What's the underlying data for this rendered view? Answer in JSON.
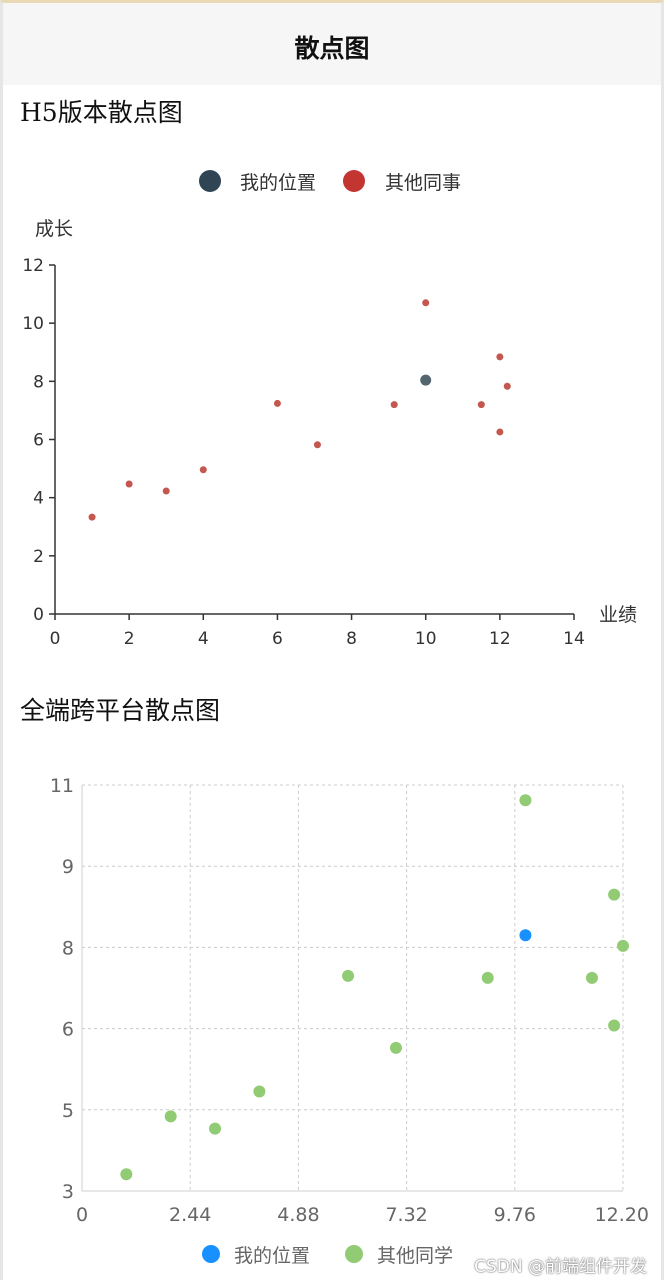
{
  "header": {
    "title": "散点图"
  },
  "sections": {
    "h5_title": "H5版本散点图",
    "cross_title": "全端跨平台散点图"
  },
  "colors": {
    "h5_me": "#2f4554",
    "h5_others": "#c23531",
    "h5_me_point": "#546570",
    "h5_others_point": "#c4574f",
    "cross_me": "#1890ff",
    "cross_others": "#91cb74"
  },
  "watermark": "CSDN @前端组件开发",
  "chart_data": [
    {
      "type": "scatter",
      "title": "H5版本散点图",
      "xlabel": "业绩",
      "ylabel": "成长",
      "xlim": [
        0,
        14
      ],
      "ylim": [
        0,
        12
      ],
      "xticks": [
        "0",
        "2",
        "4",
        "6",
        "8",
        "10",
        "12",
        "14"
      ],
      "yticks": [
        "0",
        "2",
        "4",
        "6",
        "8",
        "10",
        "12"
      ],
      "grid": false,
      "legend_position": "top-center",
      "series": [
        {
          "name": "我的位置",
          "points": [
            [
              10.0,
              8.04
            ]
          ]
        },
        {
          "name": "其他同事",
          "points": [
            [
              1.0,
              3.33
            ],
            [
              2.0,
              4.47
            ],
            [
              3.0,
              4.23
            ],
            [
              4.0,
              4.96
            ],
            [
              6.0,
              7.24
            ],
            [
              7.08,
              5.82
            ],
            [
              9.15,
              7.2
            ],
            [
              10.0,
              10.7
            ],
            [
              11.5,
              7.2
            ],
            [
              12.0,
              8.84
            ],
            [
              12.0,
              6.26
            ],
            [
              12.2,
              7.83
            ]
          ]
        }
      ]
    },
    {
      "type": "scatter",
      "title": "全端跨平台散点图",
      "xlim": [
        0,
        12.2
      ],
      "ylim": [
        3,
        11
      ],
      "xticks": [
        "0",
        "2.44",
        "4.88",
        "7.32",
        "9.76",
        "12.20"
      ],
      "yticks": [
        "3",
        "5",
        "6",
        "8",
        "9",
        "11"
      ],
      "grid": true,
      "legend_position": "bottom-center",
      "series": [
        {
          "name": "我的位置",
          "points": [
            [
              10.0,
              8.04
            ]
          ]
        },
        {
          "name": "其他同学",
          "points": [
            [
              1.0,
              3.33
            ],
            [
              2.0,
              4.47
            ],
            [
              3.0,
              4.23
            ],
            [
              4.0,
              4.96
            ],
            [
              6.0,
              7.24
            ],
            [
              7.08,
              5.82
            ],
            [
              9.15,
              7.2
            ],
            [
              10.0,
              10.7
            ],
            [
              11.5,
              7.2
            ],
            [
              12.0,
              8.84
            ],
            [
              12.0,
              6.26
            ],
            [
              12.2,
              7.83
            ]
          ]
        }
      ]
    }
  ]
}
